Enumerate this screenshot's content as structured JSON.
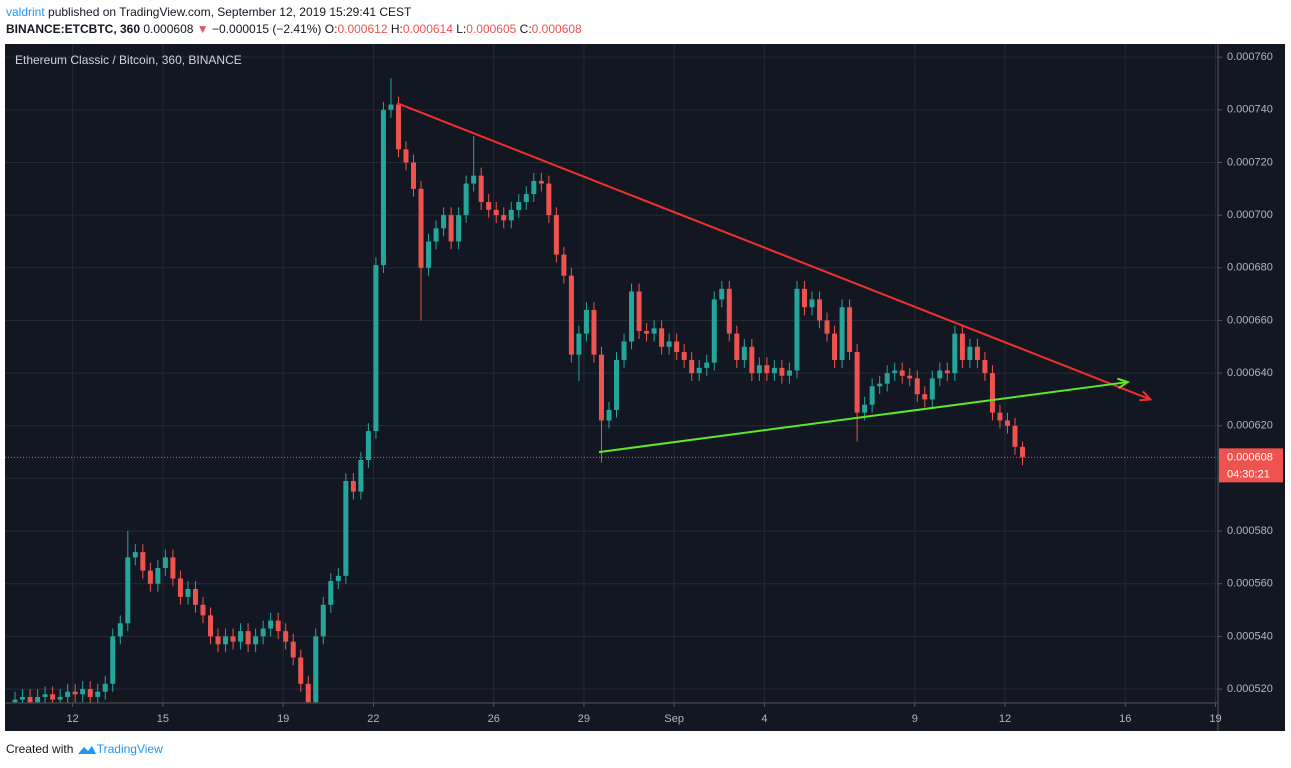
{
  "header": {
    "user": "valdrint",
    "published": "published on TradingView.com, September 12, 2019 15:29:41 CEST",
    "symbol": "BINANCE:ETCBTC, 360",
    "arrow": "▼",
    "change": "−0.000015 (−2.41%)",
    "o_label": "O:",
    "h_label": "H:",
    "l_label": "L:",
    "c_label": "C:"
  },
  "footer": {
    "created": "Created with",
    "brand": "TradingView"
  },
  "chart_data": {
    "type": "candlestick",
    "title": "Ethereum Classic / Bitcoin, 360, BINANCE",
    "up_color": "#26a69a",
    "down_color": "#ef5350",
    "grid": true,
    "countdown": "04:30:21",
    "xlim": [
      "2019-08-09T18:00",
      "2019-09-19T02:00"
    ],
    "xticks": [
      {
        "value": "2019-08-12T00:00",
        "label": "12"
      },
      {
        "value": "2019-08-15T00:00",
        "label": "15"
      },
      {
        "value": "2019-08-19T00:00",
        "label": "19"
      },
      {
        "value": "2019-08-22T00:00",
        "label": "22"
      },
      {
        "value": "2019-08-26T00:00",
        "label": "26"
      },
      {
        "value": "2019-08-29T00:00",
        "label": "29"
      },
      {
        "value": "2019-09-01T00:00",
        "label": "Sep"
      },
      {
        "value": "2019-09-04T00:00",
        "label": "4"
      },
      {
        "value": "2019-09-09T00:00",
        "label": "9"
      },
      {
        "value": "2019-09-12T00:00",
        "label": "12"
      },
      {
        "value": "2019-09-16T00:00",
        "label": "16"
      },
      {
        "value": "2019-09-19T00:00",
        "label": "19"
      }
    ],
    "ylim": [
      0.0005147,
      0.000765
    ],
    "yticks": [
      {
        "value": 0.00052,
        "label": "0.000520"
      },
      {
        "value": 0.00054,
        "label": "0.000540"
      },
      {
        "value": 0.00056,
        "label": "0.000560"
      },
      {
        "value": 0.00058,
        "label": "0.000580"
      },
      {
        "value": 0.0006,
        "label": "0.000600"
      },
      {
        "value": 0.00062,
        "label": "0.000620"
      },
      {
        "value": 0.00064,
        "label": "0.000640"
      },
      {
        "value": 0.00066,
        "label": "0.000660"
      },
      {
        "value": 0.00068,
        "label": "0.000680"
      },
      {
        "value": 0.0007,
        "label": "0.000700"
      },
      {
        "value": 0.00072,
        "label": "0.000720"
      },
      {
        "value": 0.00074,
        "label": "0.000740"
      },
      {
        "value": 0.00076,
        "label": "0.000760"
      }
    ],
    "x": [
      "2019-08-10T02:00",
      "2019-08-10T08:00",
      "2019-08-10T14:00",
      "2019-08-10T20:00",
      "2019-08-11T02:00",
      "2019-08-11T08:00",
      "2019-08-11T14:00",
      "2019-08-11T20:00",
      "2019-08-12T02:00",
      "2019-08-12T08:00",
      "2019-08-12T14:00",
      "2019-08-12T20:00",
      "2019-08-13T02:00",
      "2019-08-13T08:00",
      "2019-08-13T14:00",
      "2019-08-13T20:00",
      "2019-08-14T02:00",
      "2019-08-14T08:00",
      "2019-08-14T14:00",
      "2019-08-14T20:00",
      "2019-08-15T02:00",
      "2019-08-15T08:00",
      "2019-08-15T14:00",
      "2019-08-15T20:00",
      "2019-08-16T02:00",
      "2019-08-16T08:00",
      "2019-08-16T14:00",
      "2019-08-16T20:00",
      "2019-08-17T02:00",
      "2019-08-17T08:00",
      "2019-08-17T14:00",
      "2019-08-17T20:00",
      "2019-08-18T02:00",
      "2019-08-18T08:00",
      "2019-08-18T14:00",
      "2019-08-18T20:00",
      "2019-08-19T02:00",
      "2019-08-19T08:00",
      "2019-08-19T14:00",
      "2019-08-19T20:00",
      "2019-08-20T02:00",
      "2019-08-20T08:00",
      "2019-08-20T14:00",
      "2019-08-20T20:00",
      "2019-08-21T02:00",
      "2019-08-21T08:00",
      "2019-08-21T14:00",
      "2019-08-21T20:00",
      "2019-08-22T02:00",
      "2019-08-22T08:00",
      "2019-08-22T14:00",
      "2019-08-22T20:00",
      "2019-08-23T02:00",
      "2019-08-23T08:00",
      "2019-08-23T14:00",
      "2019-08-23T20:00",
      "2019-08-24T02:00",
      "2019-08-24T08:00",
      "2019-08-24T14:00",
      "2019-08-24T20:00",
      "2019-08-25T02:00",
      "2019-08-25T08:00",
      "2019-08-25T14:00",
      "2019-08-25T20:00",
      "2019-08-26T02:00",
      "2019-08-26T08:00",
      "2019-08-26T14:00",
      "2019-08-26T20:00",
      "2019-08-27T02:00",
      "2019-08-27T08:00",
      "2019-08-27T14:00",
      "2019-08-27T20:00",
      "2019-08-28T02:00",
      "2019-08-28T08:00",
      "2019-08-28T14:00",
      "2019-08-28T20:00",
      "2019-08-29T02:00",
      "2019-08-29T08:00",
      "2019-08-29T14:00",
      "2019-08-29T20:00",
      "2019-08-30T02:00",
      "2019-08-30T08:00",
      "2019-08-30T14:00",
      "2019-08-30T20:00",
      "2019-08-31T02:00",
      "2019-08-31T08:00",
      "2019-08-31T14:00",
      "2019-08-31T20:00",
      "2019-09-01T02:00",
      "2019-09-01T08:00",
      "2019-09-01T14:00",
      "2019-09-01T20:00",
      "2019-09-02T02:00",
      "2019-09-02T08:00",
      "2019-09-02T14:00",
      "2019-09-02T20:00",
      "2019-09-03T02:00",
      "2019-09-03T08:00",
      "2019-09-03T14:00",
      "2019-09-03T20:00",
      "2019-09-04T02:00",
      "2019-09-04T08:00",
      "2019-09-04T14:00",
      "2019-09-04T20:00",
      "2019-09-05T02:00",
      "2019-09-05T08:00",
      "2019-09-05T14:00",
      "2019-09-05T20:00",
      "2019-09-06T02:00",
      "2019-09-06T08:00",
      "2019-09-06T14:00",
      "2019-09-06T20:00",
      "2019-09-07T02:00",
      "2019-09-07T08:00",
      "2019-09-07T14:00",
      "2019-09-07T20:00",
      "2019-09-08T02:00",
      "2019-09-08T08:00",
      "2019-09-08T14:00",
      "2019-09-08T20:00",
      "2019-09-09T02:00",
      "2019-09-09T08:00",
      "2019-09-09T14:00",
      "2019-09-09T20:00",
      "2019-09-10T02:00",
      "2019-09-10T08:00",
      "2019-09-10T14:00",
      "2019-09-10T20:00",
      "2019-09-11T02:00",
      "2019-09-11T08:00",
      "2019-09-11T14:00",
      "2019-09-11T20:00",
      "2019-09-12T02:00",
      "2019-09-12T08:00",
      "2019-09-12T14:00"
    ],
    "open": [
      0.000515,
      0.000516,
      0.000517,
      0.000515,
      0.000517,
      0.000518,
      0.000516,
      0.000517,
      0.000519,
      0.000518,
      0.00052,
      0.000517,
      0.000519,
      0.000522,
      0.00054,
      0.000545,
      0.00057,
      0.000572,
      0.000565,
      0.00056,
      0.000566,
      0.00057,
      0.000562,
      0.000555,
      0.000558,
      0.000552,
      0.000548,
      0.00054,
      0.000537,
      0.00054,
      0.000538,
      0.000542,
      0.000537,
      0.00054,
      0.000543,
      0.000546,
      0.000542,
      0.000538,
      0.000532,
      0.000522,
      0.000515,
      0.00054,
      0.000552,
      0.000561,
      0.000563,
      0.000599,
      0.000595,
      0.000607,
      0.000618,
      0.000681,
      0.00074,
      0.000742,
      0.000725,
      0.00072,
      0.00071,
      0.00068,
      0.00069,
      0.000695,
      0.0007,
      0.00069,
      0.0007,
      0.000712,
      0.000715,
      0.000705,
      0.000702,
      0.0007,
      0.000698,
      0.000702,
      0.000705,
      0.000708,
      0.000713,
      0.000712,
      0.0007,
      0.000685,
      0.000677,
      0.000647,
      0.000655,
      0.000664,
      0.000647,
      0.000622,
      0.000626,
      0.000645,
      0.000652,
      0.000671,
      0.000656,
      0.000655,
      0.000657,
      0.00065,
      0.000652,
      0.000648,
      0.000645,
      0.00064,
      0.000642,
      0.000644,
      0.000668,
      0.000672,
      0.000655,
      0.000645,
      0.00065,
      0.00064,
      0.000643,
      0.00064,
      0.000642,
      0.000639,
      0.000641,
      0.000672,
      0.000665,
      0.000668,
      0.00066,
      0.000655,
      0.000645,
      0.000665,
      0.000648,
      0.000625,
      0.000628,
      0.000635,
      0.000636,
      0.00064,
      0.000641,
      0.000639,
      0.000638,
      0.000632,
      0.00063,
      0.000638,
      0.000641,
      0.00064,
      0.000655,
      0.000645,
      0.00065,
      0.000645,
      0.00064,
      0.000625,
      0.000622,
      0.00062,
      0.000612
    ],
    "high": [
      0.000519,
      0.00052,
      0.00052,
      0.00052,
      0.000521,
      0.000521,
      0.00052,
      0.000522,
      0.000522,
      0.000523,
      0.000523,
      0.000522,
      0.000525,
      0.000543,
      0.000548,
      0.00058,
      0.000575,
      0.000575,
      0.000568,
      0.000569,
      0.000573,
      0.000573,
      0.000565,
      0.000561,
      0.000561,
      0.000555,
      0.000551,
      0.000543,
      0.000543,
      0.000543,
      0.000545,
      0.000545,
      0.000543,
      0.000546,
      0.000549,
      0.000549,
      0.000545,
      0.000541,
      0.000535,
      0.000525,
      0.000543,
      0.000555,
      0.000564,
      0.000566,
      0.000602,
      0.000602,
      0.00061,
      0.000621,
      0.000684,
      0.000743,
      0.000752,
      0.000745,
      0.000728,
      0.000723,
      0.000713,
      0.000693,
      0.000698,
      0.000703,
      0.000703,
      0.000703,
      0.000715,
      0.00073,
      0.000718,
      0.000708,
      0.000705,
      0.000703,
      0.000705,
      0.000708,
      0.000711,
      0.000716,
      0.000716,
      0.000715,
      0.000703,
      0.000688,
      0.00068,
      0.000658,
      0.000667,
      0.000667,
      0.00065,
      0.000629,
      0.000648,
      0.000655,
      0.000674,
      0.000674,
      0.000659,
      0.00066,
      0.00066,
      0.000655,
      0.000655,
      0.000651,
      0.000648,
      0.000645,
      0.000647,
      0.000671,
      0.000675,
      0.000675,
      0.000658,
      0.000653,
      0.000653,
      0.000646,
      0.000646,
      0.000645,
      0.000645,
      0.000644,
      0.000675,
      0.000675,
      0.000671,
      0.000671,
      0.000663,
      0.000658,
      0.000668,
      0.000668,
      0.000651,
      0.000631,
      0.000638,
      0.000639,
      0.000643,
      0.000644,
      0.000644,
      0.000642,
      0.000641,
      0.000635,
      0.000641,
      0.000644,
      0.000644,
      0.000658,
      0.000658,
      0.000653,
      0.000653,
      0.000648,
      0.000643,
      0.000628,
      0.000625,
      0.000623,
      0.000614
    ],
    "low": [
      0.000512,
      0.000513,
      0.000512,
      0.000512,
      0.000514,
      0.000513,
      0.000513,
      0.000514,
      0.000515,
      0.000515,
      0.000514,
      0.000514,
      0.000516,
      0.000519,
      0.000537,
      0.000542,
      0.000567,
      0.000562,
      0.000557,
      0.000557,
      0.000563,
      0.000559,
      0.000552,
      0.000552,
      0.000549,
      0.000545,
      0.000537,
      0.000534,
      0.000534,
      0.000535,
      0.000535,
      0.000534,
      0.000534,
      0.000537,
      0.00054,
      0.000539,
      0.000535,
      0.000529,
      0.000519,
      0.000512,
      0.000512,
      0.000537,
      0.000549,
      0.000558,
      0.00056,
      0.000592,
      0.000592,
      0.000604,
      0.000615,
      0.000678,
      0.000737,
      0.000722,
      0.000717,
      0.000707,
      0.00066,
      0.000677,
      0.000687,
      0.000692,
      0.000687,
      0.000687,
      0.000697,
      0.000709,
      0.000702,
      0.000699,
      0.000697,
      0.000695,
      0.000695,
      0.000699,
      0.000702,
      0.000705,
      0.000709,
      0.000697,
      0.000682,
      0.000674,
      0.000644,
      0.000637,
      0.000652,
      0.000644,
      0.000606,
      0.000619,
      0.000623,
      0.000642,
      0.000649,
      0.000653,
      0.000652,
      0.000652,
      0.000647,
      0.000647,
      0.000645,
      0.000642,
      0.000637,
      0.000637,
      0.000639,
      0.000641,
      0.000665,
      0.000652,
      0.000642,
      0.000642,
      0.000637,
      0.000637,
      0.000637,
      0.000637,
      0.000636,
      0.000636,
      0.000638,
      0.000662,
      0.000662,
      0.000657,
      0.000652,
      0.000642,
      0.000642,
      0.000645,
      0.000614,
      0.000622,
      0.000625,
      0.000632,
      0.000633,
      0.000637,
      0.000636,
      0.000635,
      0.000629,
      0.000627,
      0.000627,
      0.000635,
      0.000637,
      0.000637,
      0.000642,
      0.000642,
      0.000642,
      0.000637,
      0.000622,
      0.000619,
      0.000617,
      0.000609,
      0.000605
    ],
    "close": [
      0.000516,
      0.000517,
      0.000515,
      0.000517,
      0.000518,
      0.000516,
      0.000517,
      0.000519,
      0.000518,
      0.00052,
      0.000517,
      0.000519,
      0.000522,
      0.00054,
      0.000545,
      0.00057,
      0.000572,
      0.000565,
      0.00056,
      0.000566,
      0.00057,
      0.000562,
      0.000555,
      0.000558,
      0.000552,
      0.000548,
      0.00054,
      0.000537,
      0.00054,
      0.000538,
      0.000542,
      0.000537,
      0.00054,
      0.000543,
      0.000546,
      0.000542,
      0.000538,
      0.000532,
      0.000522,
      0.000515,
      0.00054,
      0.000552,
      0.000561,
      0.000563,
      0.000599,
      0.000595,
      0.000607,
      0.000618,
      0.000681,
      0.00074,
      0.000742,
      0.000725,
      0.00072,
      0.00071,
      0.00068,
      0.00069,
      0.000695,
      0.0007,
      0.00069,
      0.0007,
      0.000712,
      0.000715,
      0.000705,
      0.000702,
      0.0007,
      0.000698,
      0.000702,
      0.000705,
      0.000708,
      0.000713,
      0.000712,
      0.0007,
      0.000685,
      0.000677,
      0.000647,
      0.000655,
      0.000664,
      0.000647,
      0.000622,
      0.000626,
      0.000645,
      0.000652,
      0.000671,
      0.000656,
      0.000655,
      0.000657,
      0.00065,
      0.000652,
      0.000648,
      0.000645,
      0.00064,
      0.000642,
      0.000644,
      0.000668,
      0.000672,
      0.000655,
      0.000645,
      0.00065,
      0.00064,
      0.000643,
      0.00064,
      0.000642,
      0.000639,
      0.000641,
      0.000672,
      0.000665,
      0.000668,
      0.00066,
      0.000655,
      0.000645,
      0.000665,
      0.000648,
      0.000625,
      0.000628,
      0.000635,
      0.000636,
      0.00064,
      0.000641,
      0.000639,
      0.000638,
      0.000632,
      0.00063,
      0.000638,
      0.000641,
      0.00064,
      0.000655,
      0.000645,
      0.00065,
      0.000645,
      0.00064,
      0.000625,
      0.000622,
      0.00062,
      0.000612,
      0.000608
    ],
    "drawings": [
      {
        "color": "#f23030",
        "x": [
          "2019-08-22T19:00",
          "2019-09-16T20:00"
        ],
        "y": [
          0.0007425,
          0.00063
        ]
      },
      {
        "color": "#5ee825",
        "x": [
          "2019-08-29T12:00",
          "2019-09-16T02:00"
        ],
        "y": [
          0.00061,
          0.0006366
        ]
      }
    ]
  }
}
